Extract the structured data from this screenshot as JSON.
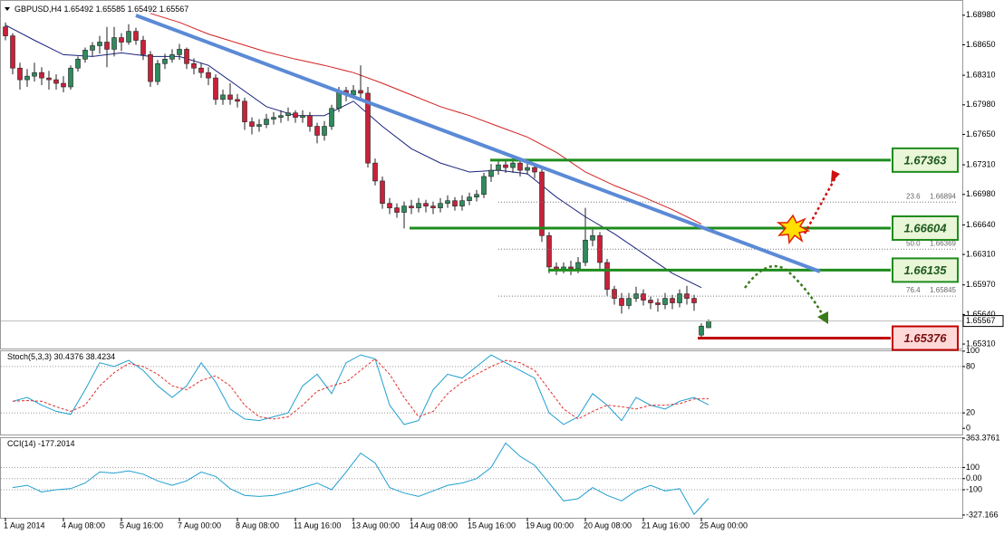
{
  "chart_data": [
    {
      "type": "candlestick",
      "title": "GBPUSD,H4",
      "up_color": "#2f8a5c",
      "down_color": "#c8213a",
      "ylim": [
        1.6526,
        1.6915
      ],
      "yticks": [
        {
          "value": 1.6898,
          "label": "1.68980"
        },
        {
          "value": 1.6865,
          "label": "1.68650"
        },
        {
          "value": 1.6831,
          "label": "1.68310"
        },
        {
          "value": 1.6798,
          "label": "1.67980"
        },
        {
          "value": 1.6765,
          "label": "1.67650"
        },
        {
          "value": 1.6731,
          "label": "1.67310"
        },
        {
          "value": 1.6698,
          "label": "1.66980"
        },
        {
          "value": 1.6664,
          "label": "1.66640"
        },
        {
          "value": 1.6631,
          "label": "1.66310"
        },
        {
          "value": 1.6597,
          "label": "1.65970"
        },
        {
          "value": 1.6564,
          "label": "1.65640"
        },
        {
          "value": 1.6531,
          "label": "1.65310"
        }
      ],
      "xticks": [
        {
          "value": 0,
          "label": "1 Aug 2014"
        },
        {
          "value": 8,
          "label": "4 Aug 08:00"
        },
        {
          "value": 16,
          "label": "5 Aug 16:00"
        },
        {
          "value": 24,
          "label": "7 Aug 00:00"
        },
        {
          "value": 32,
          "label": "8 Aug 08:00"
        },
        {
          "value": 40,
          "label": "11 Aug 16:00"
        },
        {
          "value": 48,
          "label": "13 Aug 00:00"
        },
        {
          "value": 56,
          "label": "14 Aug 08:00"
        },
        {
          "value": 64,
          "label": "15 Aug 16:00"
        },
        {
          "value": 72,
          "label": "19 Aug 00:00"
        },
        {
          "value": 80,
          "label": "20 Aug 08:00"
        },
        {
          "value": 88,
          "label": "21 Aug 16:00"
        },
        {
          "value": 96,
          "label": "25 Aug 00:00"
        }
      ],
      "ohlc": [
        [
          1.6885,
          1.689,
          1.687,
          1.6875
        ],
        [
          1.6875,
          1.6878,
          1.6832,
          1.6839
        ],
        [
          1.6839,
          1.6845,
          1.6815,
          1.6826
        ],
        [
          1.6826,
          1.6838,
          1.6818,
          1.683
        ],
        [
          1.683,
          1.6845,
          1.6824,
          1.6834
        ],
        [
          1.6834,
          1.684,
          1.682,
          1.6828
        ],
        [
          1.6828,
          1.6836,
          1.6815,
          1.6826
        ],
        [
          1.6826,
          1.6832,
          1.6815,
          1.6822
        ],
        [
          1.6822,
          1.683,
          1.6812,
          1.6818
        ],
        [
          1.6818,
          1.6842,
          1.6815,
          1.6839
        ],
        [
          1.6839,
          1.6852,
          1.6835,
          1.6849
        ],
        [
          1.6849,
          1.6862,
          1.6845,
          1.6859
        ],
        [
          1.6859,
          1.6868,
          1.6852,
          1.6864
        ],
        [
          1.6864,
          1.6875,
          1.6855,
          1.6868
        ],
        [
          1.6868,
          1.6885,
          1.684,
          1.686
        ],
        [
          1.686,
          1.6885,
          1.6852,
          1.6873
        ],
        [
          1.6873,
          1.6878,
          1.6858,
          1.6868
        ],
        [
          1.6868,
          1.6888,
          1.6865,
          1.688
        ],
        [
          1.688,
          1.6884,
          1.6865,
          1.687
        ],
        [
          1.687,
          1.6875,
          1.6848,
          1.6854
        ],
        [
          1.6854,
          1.6858,
          1.6818,
          1.6824
        ],
        [
          1.6824,
          1.6848,
          1.682,
          1.6844
        ],
        [
          1.6844,
          1.6855,
          1.6838,
          1.6849
        ],
        [
          1.6849,
          1.686,
          1.6845,
          1.6854
        ],
        [
          1.6854,
          1.6866,
          1.6848,
          1.686
        ],
        [
          1.686,
          1.6862,
          1.6838,
          1.6844
        ],
        [
          1.6844,
          1.685,
          1.6832,
          1.6839
        ],
        [
          1.6839,
          1.6845,
          1.6828,
          1.6834
        ],
        [
          1.6834,
          1.684,
          1.682,
          1.6828
        ],
        [
          1.6828,
          1.6832,
          1.6798,
          1.6804
        ],
        [
          1.6804,
          1.6815,
          1.6798,
          1.6809
        ],
        [
          1.6809,
          1.6822,
          1.6798,
          1.6804
        ],
        [
          1.6804,
          1.681,
          1.6795,
          1.6802
        ],
        [
          1.6802,
          1.6806,
          1.677,
          1.6779
        ],
        [
          1.6779,
          1.6784,
          1.6765,
          1.6774
        ],
        [
          1.6774,
          1.6782,
          1.6768,
          1.6776
        ],
        [
          1.6776,
          1.6788,
          1.6772,
          1.6782
        ],
        [
          1.6782,
          1.679,
          1.6776,
          1.6784
        ],
        [
          1.6784,
          1.6792,
          1.6778,
          1.6786
        ],
        [
          1.6786,
          1.6795,
          1.678,
          1.6789
        ],
        [
          1.6789,
          1.6792,
          1.6778,
          1.6784
        ],
        [
          1.6784,
          1.6792,
          1.6778,
          1.6786
        ],
        [
          1.6786,
          1.679,
          1.6768,
          1.6774
        ],
        [
          1.6774,
          1.6778,
          1.6755,
          1.6764
        ],
        [
          1.6764,
          1.678,
          1.6758,
          1.6774
        ],
        [
          1.6774,
          1.6798,
          1.677,
          1.6794
        ],
        [
          1.6794,
          1.6818,
          1.679,
          1.6814
        ],
        [
          1.6814,
          1.6818,
          1.6802,
          1.6809
        ],
        [
          1.6809,
          1.682,
          1.6805,
          1.6814
        ],
        [
          1.6814,
          1.6842,
          1.6805,
          1.6811
        ],
        [
          1.6811,
          1.6818,
          1.6728,
          1.6733
        ],
        [
          1.6733,
          1.6738,
          1.6708,
          1.6713
        ],
        [
          1.6713,
          1.6718,
          1.6682,
          1.6688
        ],
        [
          1.6688,
          1.6694,
          1.6676,
          1.6683
        ],
        [
          1.6683,
          1.6688,
          1.6672,
          1.6678
        ],
        [
          1.6678,
          1.669,
          1.666,
          1.6685
        ],
        [
          1.6685,
          1.6692,
          1.6676,
          1.6683
        ],
        [
          1.6683,
          1.6694,
          1.6678,
          1.6688
        ],
        [
          1.6688,
          1.6692,
          1.6678,
          1.6685
        ],
        [
          1.6685,
          1.669,
          1.6676,
          1.6683
        ],
        [
          1.6683,
          1.6694,
          1.6678,
          1.6688
        ],
        [
          1.6688,
          1.6697,
          1.6683,
          1.6691
        ],
        [
          1.6691,
          1.6695,
          1.668,
          1.6685
        ],
        [
          1.6685,
          1.6697,
          1.668,
          1.6691
        ],
        [
          1.6691,
          1.67,
          1.6686,
          1.6695
        ],
        [
          1.6695,
          1.6703,
          1.669,
          1.6698
        ],
        [
          1.6698,
          1.6722,
          1.6694,
          1.6718
        ],
        [
          1.6718,
          1.6732,
          1.6712,
          1.6725
        ],
        [
          1.6725,
          1.6736,
          1.672,
          1.6731
        ],
        [
          1.6731,
          1.6736,
          1.6722,
          1.6728
        ],
        [
          1.6728,
          1.6738,
          1.6722,
          1.6733
        ],
        [
          1.6733,
          1.6736,
          1.6718,
          1.6725
        ],
        [
          1.6725,
          1.6734,
          1.672,
          1.6728
        ],
        [
          1.6728,
          1.6732,
          1.6716,
          1.6723
        ],
        [
          1.6723,
          1.6727,
          1.6645,
          1.6652
        ],
        [
          1.6652,
          1.6656,
          1.661,
          1.6617
        ],
        [
          1.6617,
          1.6622,
          1.6608,
          1.6614
        ],
        [
          1.6614,
          1.6622,
          1.661,
          1.6617
        ],
        [
          1.6617,
          1.6624,
          1.6608,
          1.6615
        ],
        [
          1.6615,
          1.6628,
          1.661,
          1.6622
        ],
        [
          1.6622,
          1.6683,
          1.6618,
          1.6647
        ],
        [
          1.6647,
          1.666,
          1.664,
          1.6652
        ],
        [
          1.6652,
          1.6656,
          1.6615,
          1.6622
        ],
        [
          1.6622,
          1.6626,
          1.6585,
          1.6592
        ],
        [
          1.6592,
          1.6596,
          1.6575,
          1.6582
        ],
        [
          1.6582,
          1.6588,
          1.6565,
          1.6574
        ],
        [
          1.6574,
          1.6588,
          1.657,
          1.6582
        ],
        [
          1.6582,
          1.6595,
          1.6578,
          1.6587
        ],
        [
          1.6587,
          1.6592,
          1.6574,
          1.658
        ],
        [
          1.658,
          1.6584,
          1.657,
          1.6577
        ],
        [
          1.6577,
          1.6582,
          1.6567,
          1.6575
        ],
        [
          1.6575,
          1.6588,
          1.657,
          1.6582
        ],
        [
          1.6582,
          1.6586,
          1.657,
          1.6577
        ],
        [
          1.6577,
          1.6592,
          1.6572,
          1.6587
        ],
        [
          1.6587,
          1.6596,
          1.6575,
          1.6582
        ],
        [
          1.6582,
          1.6586,
          1.6568,
          1.6577
        ],
        [
          1.6541,
          1.6554,
          1.6537,
          1.6551
        ],
        [
          1.65492,
          1.65585,
          1.65492,
          1.65567
        ]
      ],
      "series": [
        {
          "color": "#1a237e",
          "x": [
            0,
            4,
            8,
            12,
            16,
            20,
            24,
            28,
            32,
            36,
            40,
            44,
            48,
            52,
            56,
            60,
            64,
            68,
            72,
            76,
            80,
            84,
            88,
            92,
            96
          ],
          "values": [
            1.6887,
            1.687,
            1.6854,
            1.6852,
            1.6856,
            1.6852,
            1.6852,
            1.6842,
            1.6819,
            1.6796,
            1.6786,
            1.6786,
            1.6802,
            1.6774,
            1.6749,
            1.6733,
            1.6723,
            1.6725,
            1.6721,
            1.6695,
            1.6673,
            1.6654,
            1.6632,
            1.661,
            1.6594
          ]
        },
        {
          "color": "#d32020",
          "x": [
            0,
            4,
            8,
            12,
            16,
            20,
            24,
            28,
            32,
            36,
            40,
            44,
            48,
            52,
            56,
            60,
            64,
            68,
            72,
            76,
            80,
            84,
            88,
            92,
            96
          ],
          "values": [
            null,
            null,
            null,
            null,
            null,
            1.69,
            1.689,
            1.6877,
            1.6867,
            1.6857,
            1.6849,
            1.6842,
            1.6834,
            1.6822,
            1.6809,
            1.6796,
            1.6786,
            1.6774,
            1.6762,
            1.6745,
            1.6723,
            1.6708,
            1.6695,
            1.6681,
            1.6665
          ]
        }
      ],
      "levels": [
        {
          "value": 1.67363,
          "color": "#1e8c1e"
        },
        {
          "value": 1.66604,
          "color": "#1e8c1e"
        },
        {
          "value": 1.66135,
          "color": "#1e8c1e"
        },
        {
          "value": 1.65376,
          "color": "#c00000"
        }
      ],
      "fib": [
        {
          "ratio": "23.6",
          "value": 1.66894
        },
        {
          "ratio": "50.0",
          "value": 1.66369
        },
        {
          "ratio": "76.4",
          "value": 1.65845
        }
      ]
    },
    {
      "type": "line",
      "title": "Stoch(5,3,3)",
      "ylim": [
        -8,
        101
      ],
      "yticks": [
        100,
        80,
        20,
        0
      ],
      "x": [
        1,
        3,
        5,
        7,
        9,
        11,
        13,
        15,
        17,
        19,
        21,
        23,
        25,
        27,
        29,
        31,
        33,
        35,
        37,
        39,
        41,
        43,
        45,
        47,
        49,
        51,
        53,
        55,
        57,
        59,
        61,
        63,
        65,
        67,
        69,
        71,
        73,
        75,
        77,
        79,
        81,
        83,
        85,
        87,
        89,
        91,
        93,
        95,
        97
      ],
      "series": [
        {
          "color": "#1f9fd0",
          "values": [
            35,
            40,
            30,
            22,
            18,
            50,
            85,
            80,
            88,
            75,
            55,
            40,
            55,
            85,
            60,
            25,
            12,
            10,
            15,
            20,
            55,
            70,
            45,
            85,
            95,
            90,
            30,
            5,
            10,
            50,
            70,
            65,
            80,
            95,
            85,
            75,
            65,
            20,
            5,
            15,
            45,
            30,
            10,
            40,
            30,
            25,
            35,
            40,
            30.4376
          ]
        },
        {
          "color": "#e03030",
          "dash": true,
          "values": [
            35,
            36,
            35,
            28,
            22,
            30,
            55,
            72,
            84,
            80,
            70,
            55,
            50,
            62,
            68,
            55,
            30,
            15,
            12,
            15,
            30,
            48,
            55,
            60,
            75,
            90,
            70,
            40,
            15,
            22,
            45,
            60,
            70,
            80,
            88,
            85,
            75,
            50,
            25,
            12,
            22,
            30,
            28,
            25,
            30,
            30,
            32,
            38,
            38.4234
          ]
        }
      ]
    },
    {
      "type": "line",
      "title": "CCI(14)",
      "ylim": [
        -352,
        372
      ],
      "yticks": [
        363.3761,
        100,
        {
          "value": 0,
          "label": "0.00"
        },
        -100,
        -327.166
      ],
      "x": [
        1,
        3,
        5,
        7,
        9,
        11,
        13,
        15,
        17,
        19,
        21,
        23,
        25,
        27,
        29,
        31,
        33,
        35,
        37,
        39,
        41,
        43,
        45,
        47,
        49,
        51,
        53,
        55,
        57,
        59,
        61,
        63,
        65,
        67,
        69,
        71,
        73,
        75,
        77,
        79,
        81,
        83,
        85,
        87,
        89,
        91,
        93,
        95,
        97
      ],
      "series": [
        {
          "color": "#1f9fd0",
          "values": [
            -80,
            -60,
            -120,
            -100,
            -90,
            -40,
            60,
            50,
            70,
            40,
            -20,
            -60,
            -20,
            60,
            20,
            -90,
            -150,
            -160,
            -150,
            -120,
            -80,
            -40,
            -100,
            60,
            230,
            140,
            -80,
            -130,
            -160,
            -110,
            -60,
            -40,
            0,
            100,
            320,
            200,
            120,
            -40,
            -200,
            -180,
            -80,
            -150,
            -200,
            -110,
            -60,
            -110,
            -90,
            -320,
            -177.2014
          ]
        }
      ]
    }
  ]
}
